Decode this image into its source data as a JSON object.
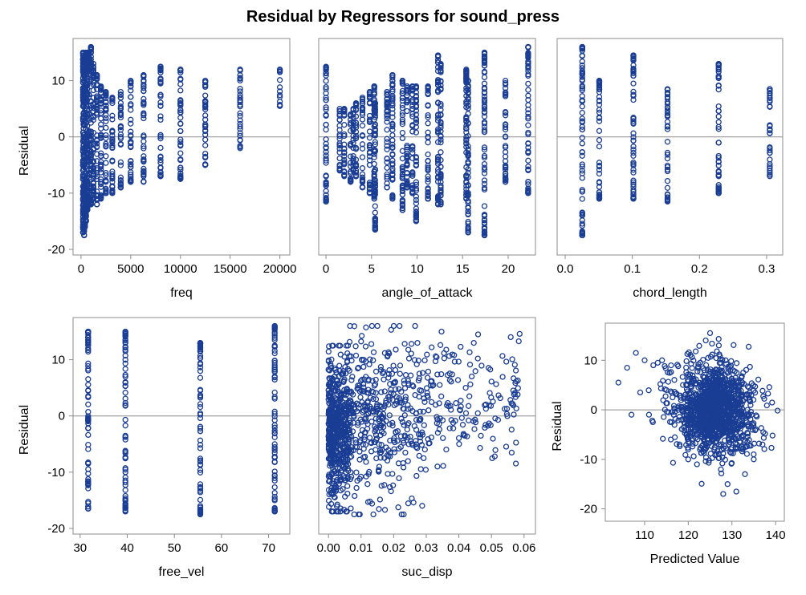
{
  "title": "Residual by Regressors for sound_press",
  "colors": {
    "marker": "#1a3d94",
    "frame": "#8c8c8c",
    "reference_line": "#8c8c8c"
  },
  "chart_data": [
    {
      "type": "scatter",
      "id": "freq",
      "xlabel": "freq",
      "ylabel": "Residual",
      "xlim": [
        -800,
        21000
      ],
      "ylim": [
        -21,
        17.5
      ],
      "xticks": [
        0,
        5000,
        10000,
        15000,
        20000
      ],
      "yticks": [
        -20,
        -10,
        0,
        10
      ],
      "reference_y": 0,
      "columns": [
        {
          "x": 200,
          "min": -17,
          "max": 15
        },
        {
          "x": 250,
          "min": -16,
          "max": 14
        },
        {
          "x": 315,
          "min": -17.5,
          "max": 14
        },
        {
          "x": 400,
          "min": -16,
          "max": 14.5
        },
        {
          "x": 500,
          "min": -15,
          "max": 15
        },
        {
          "x": 630,
          "min": -13,
          "max": 15
        },
        {
          "x": 800,
          "min": -12,
          "max": 15
        },
        {
          "x": 1000,
          "min": -12,
          "max": 16
        },
        {
          "x": 1250,
          "min": -11,
          "max": 13
        },
        {
          "x": 1600,
          "min": -12,
          "max": 11
        },
        {
          "x": 2000,
          "min": -11,
          "max": 9
        },
        {
          "x": 2500,
          "min": -10,
          "max": 8
        },
        {
          "x": 3150,
          "min": -10,
          "max": 7
        },
        {
          "x": 4000,
          "min": -9,
          "max": 8
        },
        {
          "x": 5000,
          "min": -8,
          "max": 10
        },
        {
          "x": 6300,
          "min": -8,
          "max": 11
        },
        {
          "x": 8000,
          "min": -7,
          "max": 12.5
        },
        {
          "x": 10000,
          "min": -7.5,
          "max": 12
        },
        {
          "x": 12500,
          "min": -5,
          "max": 10
        },
        {
          "x": 16000,
          "min": -2,
          "max": 12
        },
        {
          "x": 20000,
          "min": 5.5,
          "max": 12
        }
      ]
    },
    {
      "type": "scatter",
      "id": "angle_of_attack",
      "xlabel": "angle_of_attack",
      "ylabel": "",
      "xlim": [
        -0.8,
        23
      ],
      "ylim": [
        -21,
        17.5
      ],
      "xticks": [
        0,
        5,
        10,
        15,
        20
      ],
      "yticks": [
        -20,
        -10,
        0,
        10
      ],
      "reference_y": 0,
      "columns": [
        {
          "x": 0,
          "min": -11.5,
          "max": 12.5
        },
        {
          "x": 1.5,
          "min": -6,
          "max": 5
        },
        {
          "x": 2,
          "min": -7,
          "max": 5
        },
        {
          "x": 2.7,
          "min": -8,
          "max": 4
        },
        {
          "x": 3,
          "min": -6,
          "max": 5
        },
        {
          "x": 3.3,
          "min": -7,
          "max": 6
        },
        {
          "x": 4,
          "min": -9,
          "max": 7
        },
        {
          "x": 4.8,
          "min": -10,
          "max": 8
        },
        {
          "x": 5.3,
          "min": -11,
          "max": 9
        },
        {
          "x": 5.4,
          "min": -16.5,
          "max": 6
        },
        {
          "x": 6.7,
          "min": -9,
          "max": 8
        },
        {
          "x": 7.3,
          "min": -11,
          "max": 11
        },
        {
          "x": 8.4,
          "min": -13,
          "max": 10
        },
        {
          "x": 8.9,
          "min": -9,
          "max": 9
        },
        {
          "x": 9.5,
          "min": -10,
          "max": 9
        },
        {
          "x": 9.9,
          "min": -15,
          "max": 9
        },
        {
          "x": 11.2,
          "min": -11,
          "max": 9
        },
        {
          "x": 12.3,
          "min": -12,
          "max": 14.5
        },
        {
          "x": 12.6,
          "min": -12,
          "max": 13
        },
        {
          "x": 15.4,
          "min": -11,
          "max": 12
        },
        {
          "x": 15.6,
          "min": -17,
          "max": 10
        },
        {
          "x": 17.4,
          "min": -17.5,
          "max": 15
        },
        {
          "x": 19.7,
          "min": -8,
          "max": 10
        },
        {
          "x": 22.2,
          "min": -10,
          "max": 16
        }
      ]
    },
    {
      "type": "scatter",
      "id": "chord_length",
      "xlabel": "chord_length",
      "ylabel": "",
      "xlim": [
        -0.012,
        0.324
      ],
      "ylim": [
        -21,
        17.5
      ],
      "xticks": [
        0.0,
        0.1,
        0.2,
        0.3
      ],
      "xticklabels": [
        "0.0",
        "0.1",
        "0.2",
        "0.3"
      ],
      "yticks": [
        -20,
        -10,
        0,
        10
      ],
      "reference_y": 0,
      "columns": [
        {
          "x": 0.0254,
          "min": -17.5,
          "max": 16
        },
        {
          "x": 0.0508,
          "min": -11,
          "max": 10
        },
        {
          "x": 0.1016,
          "min": -11,
          "max": 14.5
        },
        {
          "x": 0.1524,
          "min": -11.5,
          "max": 8.5
        },
        {
          "x": 0.2286,
          "min": -10,
          "max": 13
        },
        {
          "x": 0.3048,
          "min": -7,
          "max": 8.5
        }
      ]
    },
    {
      "type": "scatter",
      "id": "free_vel",
      "xlabel": "free_vel",
      "ylabel": "Residual",
      "xlim": [
        28.5,
        74.5
      ],
      "ylim": [
        -21,
        17.5
      ],
      "xticks": [
        30,
        40,
        50,
        60,
        70
      ],
      "yticks": [
        -20,
        -10,
        0,
        10
      ],
      "reference_y": 0,
      "columns": [
        {
          "x": 31.7,
          "min": -16.5,
          "max": 15
        },
        {
          "x": 39.6,
          "min": -17,
          "max": 15
        },
        {
          "x": 55.5,
          "min": -17.5,
          "max": 13
        },
        {
          "x": 71.3,
          "min": -17,
          "max": 16
        }
      ]
    },
    {
      "type": "scatter",
      "id": "suc_disp",
      "xlabel": "suc_disp",
      "ylabel": "",
      "xlim": [
        -0.003,
        0.0635
      ],
      "ylim": [
        -21,
        17.5
      ],
      "xticks": [
        0.0,
        0.01,
        0.02,
        0.03,
        0.04,
        0.05,
        0.06
      ],
      "xticklabels": [
        "0.00",
        "0.01",
        "0.02",
        "0.03",
        "0.04",
        "0.05",
        "0.06"
      ],
      "yticks": [
        -20,
        -10,
        0,
        10
      ],
      "reference_y": 0,
      "clusters": [
        {
          "x0": 0.0,
          "x1": 0.006,
          "ymin": -17,
          "ymax": 12.5,
          "n": 520
        },
        {
          "x0": 0.006,
          "x1": 0.03,
          "ymin": -17.5,
          "ymax": 16,
          "n": 420
        },
        {
          "x0": 0.03,
          "x1": 0.059,
          "ymin": -9,
          "ymax": 15,
          "n": 160
        }
      ]
    },
    {
      "type": "scatter",
      "id": "predicted",
      "xlabel": "Predicted Value",
      "ylabel": "Residual",
      "xlim": [
        101,
        142
      ],
      "ylim": [
        -22.5,
        17.5
      ],
      "xticks": [
        110,
        120,
        130,
        140
      ],
      "yticks": [
        -20,
        -10,
        0,
        10
      ],
      "reference_y": 0,
      "clusters": [
        {
          "cx": 126,
          "cy": 0,
          "sx": 5,
          "sy": 4.5,
          "n": 1300
        }
      ],
      "points": [
        [
          104,
          5.5
        ],
        [
          106,
          8.5
        ],
        [
          108,
          11.5
        ],
        [
          110,
          10
        ],
        [
          112,
          9
        ],
        [
          113,
          9.5
        ],
        [
          114,
          10
        ],
        [
          115,
          4
        ],
        [
          109,
          3.5
        ],
        [
          111,
          -1
        ],
        [
          107,
          -1
        ],
        [
          116,
          -6
        ],
        [
          118,
          -7
        ],
        [
          120,
          -10
        ],
        [
          122,
          -11
        ],
        [
          128,
          -17
        ],
        [
          129,
          -15
        ],
        [
          131,
          -16.5
        ],
        [
          133,
          -13
        ],
        [
          135,
          -10
        ],
        [
          137,
          -7
        ],
        [
          125,
          15.5
        ],
        [
          124,
          14
        ],
        [
          127,
          13
        ]
      ]
    }
  ]
}
